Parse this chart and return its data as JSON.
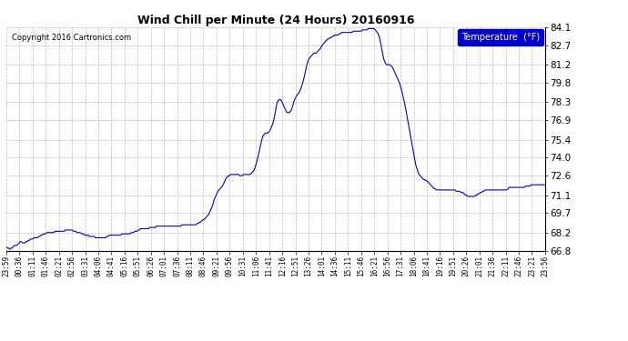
{
  "title": "Wind Chill per Minute (24 Hours) 20160916",
  "copyright": "Copyright 2016 Cartronics.com",
  "legend_label": "Temperature  (°F)",
  "line_color": "#0000cc",
  "background_color": "#ffffff",
  "grid_color": "#aaaaaa",
  "ylim": [
    66.8,
    84.1
  ],
  "yticks": [
    66.8,
    68.2,
    69.7,
    71.1,
    72.6,
    74.0,
    75.4,
    76.9,
    78.3,
    79.8,
    81.2,
    82.7,
    84.1
  ],
  "x_tick_labels": [
    "23:59",
    "00:36",
    "01:11",
    "01:46",
    "02:21",
    "02:56",
    "03:31",
    "04:06",
    "04:41",
    "05:16",
    "05:51",
    "06:26",
    "07:01",
    "07:36",
    "08:11",
    "08:46",
    "09:21",
    "09:56",
    "10:31",
    "11:06",
    "11:41",
    "12:16",
    "12:51",
    "13:26",
    "14:01",
    "14:36",
    "15:11",
    "15:46",
    "16:21",
    "16:56",
    "17:31",
    "18:06",
    "18:41",
    "19:16",
    "19:51",
    "20:26",
    "21:01",
    "21:36",
    "22:11",
    "22:46",
    "23:21",
    "23:56"
  ],
  "profile": [
    67.1,
    67.0,
    67.0,
    66.9,
    67.0,
    67.0,
    67.1,
    67.2,
    67.2,
    67.2,
    67.3,
    67.4,
    67.5,
    67.5,
    67.4,
    67.4,
    67.4,
    67.5,
    67.5,
    67.6,
    67.6,
    67.7,
    67.7,
    67.7,
    67.8,
    67.8,
    67.8,
    67.8,
    67.9,
    67.9,
    68.0,
    68.0,
    68.1,
    68.1,
    68.1,
    68.2,
    68.2,
    68.2,
    68.2,
    68.2,
    68.2,
    68.2,
    68.3,
    68.3,
    68.3,
    68.3,
    68.3,
    68.3,
    68.3,
    68.3,
    68.3,
    68.4,
    68.4,
    68.4,
    68.4,
    68.4,
    68.4,
    68.4,
    68.3,
    68.3,
    68.3,
    68.2,
    68.2,
    68.2,
    68.2,
    68.1,
    68.1,
    68.1,
    68.0,
    68.0,
    68.0,
    68.0,
    67.9,
    67.9,
    67.9,
    67.9,
    67.9,
    67.8,
    67.8,
    67.8,
    67.8,
    67.8,
    67.8,
    67.8,
    67.8,
    67.8,
    67.8,
    67.9,
    67.9,
    68.0,
    68.0,
    68.0,
    68.0,
    68.0,
    68.0,
    68.0,
    68.0,
    68.0,
    68.0,
    68.0,
    68.1,
    68.1,
    68.1,
    68.1,
    68.1,
    68.1,
    68.1,
    68.1,
    68.2,
    68.2,
    68.2,
    68.3,
    68.3,
    68.3,
    68.4,
    68.4,
    68.5,
    68.5,
    68.5,
    68.5,
    68.5,
    68.5,
    68.5,
    68.5,
    68.6,
    68.6,
    68.6,
    68.6,
    68.6,
    68.6,
    68.7,
    68.7,
    68.7,
    68.7,
    68.7,
    68.7,
    68.7,
    68.7,
    68.7,
    68.7,
    68.7,
    68.7,
    68.7,
    68.7,
    68.7,
    68.7,
    68.7,
    68.7,
    68.7,
    68.7,
    68.7,
    68.7,
    68.8,
    68.8,
    68.8,
    68.8,
    68.8,
    68.8,
    68.8,
    68.8,
    68.8,
    68.8,
    68.8,
    68.8,
    68.8,
    68.9,
    68.9,
    69.0,
    69.0,
    69.1,
    69.2,
    69.2,
    69.3,
    69.4,
    69.5,
    69.6,
    69.8,
    70.0,
    70.2,
    70.5,
    70.8,
    71.0,
    71.2,
    71.4,
    71.5,
    71.6,
    71.7,
    71.8,
    72.0,
    72.2,
    72.4,
    72.5,
    72.6,
    72.6,
    72.7,
    72.7,
    72.7,
    72.7,
    72.7,
    72.7,
    72.7,
    72.7,
    72.6,
    72.6,
    72.6,
    72.7,
    72.7,
    72.7,
    72.7,
    72.7,
    72.7,
    72.7,
    72.8,
    72.9,
    73.0,
    73.2,
    73.5,
    73.8,
    74.2,
    74.6,
    75.0,
    75.4,
    75.7,
    75.8,
    75.9,
    75.9,
    75.9,
    76.0,
    76.1,
    76.3,
    76.5,
    76.8,
    77.2,
    77.7,
    78.2,
    78.4,
    78.5,
    78.5,
    78.4,
    78.2,
    78.0,
    77.8,
    77.6,
    77.5,
    77.5,
    77.5,
    77.6,
    77.8,
    78.1,
    78.4,
    78.6,
    78.8,
    78.9,
    79.0,
    79.2,
    79.4,
    79.7,
    80.0,
    80.4,
    80.8,
    81.2,
    81.5,
    81.7,
    81.8,
    81.9,
    82.0,
    82.1,
    82.1,
    82.1,
    82.2,
    82.3,
    82.4,
    82.5,
    82.7,
    82.8,
    82.9,
    83.0,
    83.1,
    83.2,
    83.2,
    83.3,
    83.3,
    83.4,
    83.4,
    83.5,
    83.5,
    83.5,
    83.5,
    83.6,
    83.6,
    83.7,
    83.7,
    83.7,
    83.7,
    83.7,
    83.7,
    83.7,
    83.7,
    83.7,
    83.7,
    83.8,
    83.8,
    83.8,
    83.8,
    83.8,
    83.8,
    83.8,
    83.8,
    83.9,
    83.9,
    83.9,
    83.9,
    83.9,
    84.0,
    84.0,
    84.0,
    84.0,
    84.0,
    84.0,
    83.9,
    83.8,
    83.7,
    83.5,
    83.2,
    82.8,
    82.3,
    81.8,
    81.5,
    81.3,
    81.2,
    81.2,
    81.2,
    81.2,
    81.1,
    81.0,
    80.8,
    80.6,
    80.4,
    80.2,
    80.0,
    79.8,
    79.5,
    79.2,
    78.8,
    78.4,
    78.0,
    77.5,
    77.0,
    76.5,
    76.0,
    75.5,
    75.0,
    74.5,
    74.0,
    73.5,
    73.2,
    72.9,
    72.7,
    72.6,
    72.5,
    72.4,
    72.3,
    72.3,
    72.2,
    72.2,
    72.1,
    72.0,
    71.9,
    71.8,
    71.7,
    71.6,
    71.6,
    71.5,
    71.5,
    71.5,
    71.5,
    71.5,
    71.5,
    71.5,
    71.5,
    71.5,
    71.5,
    71.5,
    71.5,
    71.5,
    71.5,
    71.5,
    71.5,
    71.5,
    71.4,
    71.4,
    71.4,
    71.4,
    71.3,
    71.3,
    71.3,
    71.2,
    71.1,
    71.1,
    71.0,
    71.0,
    71.0,
    71.0,
    71.0,
    71.0,
    71.0,
    71.1,
    71.1,
    71.2,
    71.2,
    71.3,
    71.3,
    71.4,
    71.4,
    71.5,
    71.5,
    71.5,
    71.5,
    71.5,
    71.5,
    71.5,
    71.5,
    71.5,
    71.5,
    71.5,
    71.5,
    71.5,
    71.5,
    71.5,
    71.5,
    71.5,
    71.5,
    71.5,
    71.5,
    71.6,
    71.7,
    71.7,
    71.7,
    71.7,
    71.7,
    71.7,
    71.7,
    71.7,
    71.7,
    71.7,
    71.7,
    71.7,
    71.7,
    71.7,
    71.8,
    71.8,
    71.8,
    71.8,
    71.8,
    71.9,
    71.9,
    71.9,
    71.9,
    71.9,
    71.9,
    71.9,
    71.9,
    71.9,
    71.9,
    71.9,
    71.9,
    71.9
  ]
}
